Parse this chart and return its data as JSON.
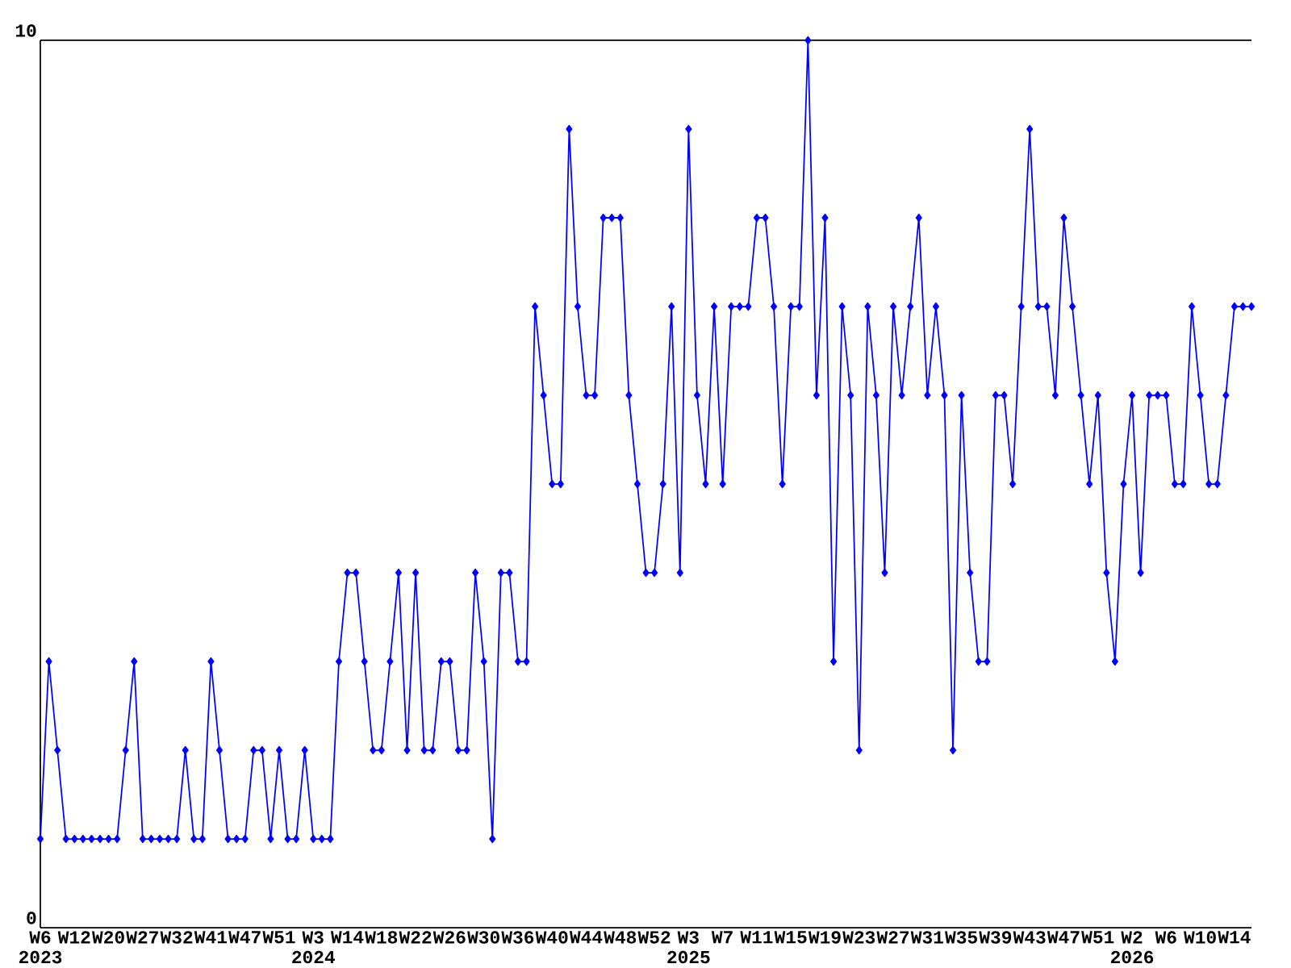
{
  "chart_data": {
    "type": "line",
    "categories": [
      "W6 2023",
      null,
      null,
      null,
      "W12",
      null,
      null,
      null,
      "W20",
      null,
      null,
      null,
      "W27",
      null,
      null,
      null,
      "W32",
      null,
      null,
      null,
      "W41",
      null,
      null,
      null,
      "W47",
      null,
      null,
      null,
      "W51",
      null,
      null,
      null,
      "W3 2024",
      null,
      null,
      null,
      "W14",
      null,
      null,
      null,
      "W18",
      null,
      null,
      null,
      "W22",
      null,
      null,
      null,
      "W26",
      null,
      null,
      null,
      "W30",
      null,
      null,
      null,
      "W36",
      null,
      null,
      null,
      "W40",
      null,
      null,
      null,
      "W44",
      null,
      null,
      null,
      "W48",
      null,
      null,
      null,
      "W52",
      null,
      null,
      null,
      "W3 2025",
      null,
      null,
      null,
      "W7",
      null,
      null,
      null,
      "W11",
      null,
      null,
      null,
      "W15",
      null,
      null,
      null,
      "W19",
      null,
      null,
      null,
      "W23",
      null,
      null,
      null,
      "W27",
      null,
      null,
      null,
      "W31",
      null,
      null,
      null,
      "W35",
      null,
      null,
      null,
      "W39",
      null,
      null,
      null,
      "W43",
      null,
      null,
      null,
      "W47",
      null,
      null,
      null,
      "W51",
      null,
      null,
      null,
      "W2 2026",
      null,
      null,
      null,
      "W6",
      null,
      null,
      null,
      "W10",
      null,
      null,
      null,
      "W14",
      null,
      null
    ],
    "values": [
      1,
      3,
      2,
      1,
      1,
      1,
      1,
      1,
      1,
      1,
      2,
      3,
      1,
      1,
      1,
      1,
      1,
      2,
      1,
      1,
      3,
      2,
      1,
      1,
      1,
      2,
      2,
      1,
      2,
      1,
      1,
      2,
      1,
      1,
      1,
      3,
      4,
      4,
      3,
      2,
      2,
      3,
      4,
      2,
      4,
      2,
      2,
      3,
      3,
      2,
      2,
      4,
      3,
      1,
      4,
      4,
      3,
      3,
      7,
      6,
      5,
      5,
      9,
      7,
      6,
      6,
      8,
      8,
      8,
      6,
      5,
      4,
      4,
      5,
      7,
      4,
      9,
      6,
      5,
      7,
      5,
      7,
      7,
      7,
      8,
      8,
      7,
      5,
      7,
      7,
      10,
      6,
      8,
      3,
      7,
      6,
      2,
      7,
      6,
      4,
      7,
      6,
      7,
      8,
      6,
      7,
      6,
      2,
      6,
      4,
      3,
      3,
      6,
      6,
      5,
      7,
      9,
      7,
      7,
      6,
      8,
      7,
      6,
      5,
      6,
      4,
      3,
      5,
      6,
      4,
      6,
      6,
      6,
      5,
      5,
      7,
      6,
      5,
      5,
      6,
      7,
      7,
      7
    ],
    "color": "#0000ff",
    "marker": "diamond",
    "ylim": [
      0,
      10
    ],
    "yticks": [
      0,
      10
    ]
  }
}
